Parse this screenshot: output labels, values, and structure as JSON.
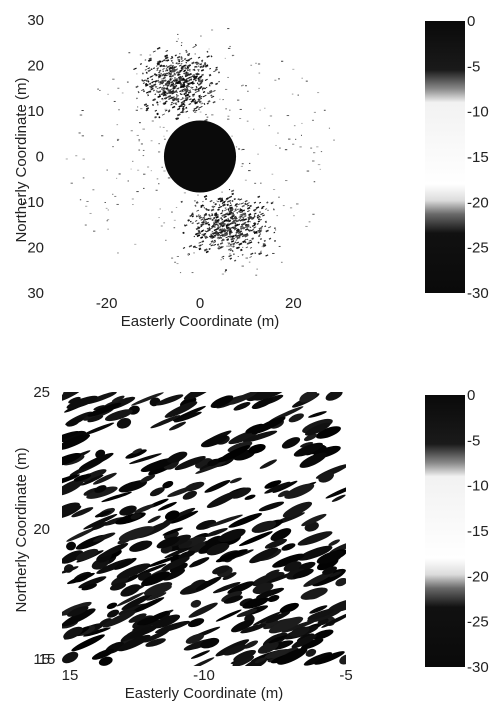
{
  "figure": {
    "panels": [
      {
        "xlabel": "Easterly Coordinate (m)",
        "ylabel": "Northerly Coordinate (m)",
        "xticks": [
          "-20",
          "0",
          "20"
        ],
        "yticks": [
          "30",
          "20",
          "10",
          "0",
          "-10",
          "20",
          "30"
        ],
        "colorbar_ticks": [
          "0",
          "-5",
          "-10",
          "-15",
          "-20",
          "-25",
          "-30"
        ]
      },
      {
        "xlabel": "Easterly Coordinate (m)",
        "ylabel": "Northerly Coordinate (m)",
        "xticks": [
          "15",
          "-10",
          "-5"
        ],
        "yticks": [
          "25",
          "20",
          "15"
        ],
        "corner_tick": "15",
        "colorbar_ticks": [
          "0",
          "-5",
          "-10",
          "-15",
          "-20",
          "-25",
          "-30"
        ]
      }
    ]
  },
  "chart_data": [
    {
      "type": "heatmap",
      "xlabel": "Easterly Coordinate (m)",
      "ylabel": "Northerly Coordinate (m)",
      "xlim": [
        -30,
        30
      ],
      "ylim": [
        -30,
        30
      ],
      "colorbar": {
        "range": [
          -30,
          0
        ],
        "ticks": [
          0,
          -5,
          -10,
          -15,
          -20,
          -25,
          -30
        ]
      },
      "features": {
        "central_disk": {
          "center": [
            0,
            0
          ],
          "radius_m": 7.5,
          "value": 0
        },
        "speckle_lobes": [
          {
            "center": [
              -5,
              16
            ],
            "spread_m": [
              10,
              8
            ]
          },
          {
            "center": [
              6,
              -15
            ],
            "spread_m": [
              10,
              8
            ]
          }
        ]
      }
    },
    {
      "type": "heatmap",
      "xlabel": "Easterly Coordinate (m)",
      "ylabel": "Northerly Coordinate (m)",
      "xlim": [
        -15,
        -5
      ],
      "ylim": [
        15,
        25
      ],
      "colorbar": {
        "range": [
          -30,
          0
        ],
        "ticks": [
          0,
          -5,
          -10,
          -15,
          -20,
          -25,
          -30
        ]
      },
      "features": {
        "streak_orientation_deg": 22,
        "texture": "elongated diagonal speckle"
      }
    }
  ]
}
